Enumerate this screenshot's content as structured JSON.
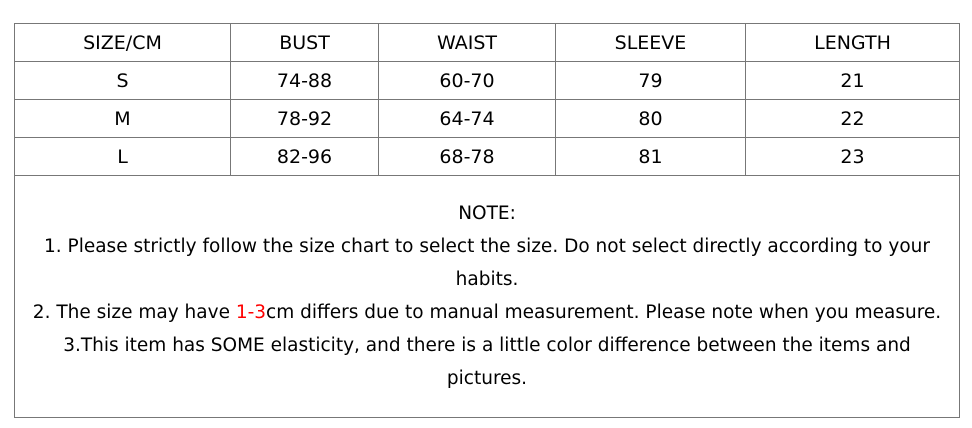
{
  "headers": [
    "SIZE/CM",
    "BUST",
    "WAIST",
    "SLEEVE",
    "LENGTH"
  ],
  "rows": [
    [
      "S",
      "74-88",
      "60-70",
      "79",
      "21"
    ],
    [
      "M",
      "78-92",
      "64-74",
      "80",
      "22"
    ],
    [
      "L",
      "82-96",
      "68-78",
      "81",
      "23"
    ]
  ],
  "note": {
    "title": "NOTE:",
    "line1": "1. Please strictly follow the size chart to select the size. Do not select directly according to your habits.",
    "line2_before": "2. The size may have ",
    "line2_highlight": "1-3",
    "line2_after": "cm differs due to manual measurement. Please note when you measure.",
    "line3": "3.This item has SOME elasticity, and there is a little color difference between the items and pictures.",
    "highlight_color": "#ff0000"
  }
}
